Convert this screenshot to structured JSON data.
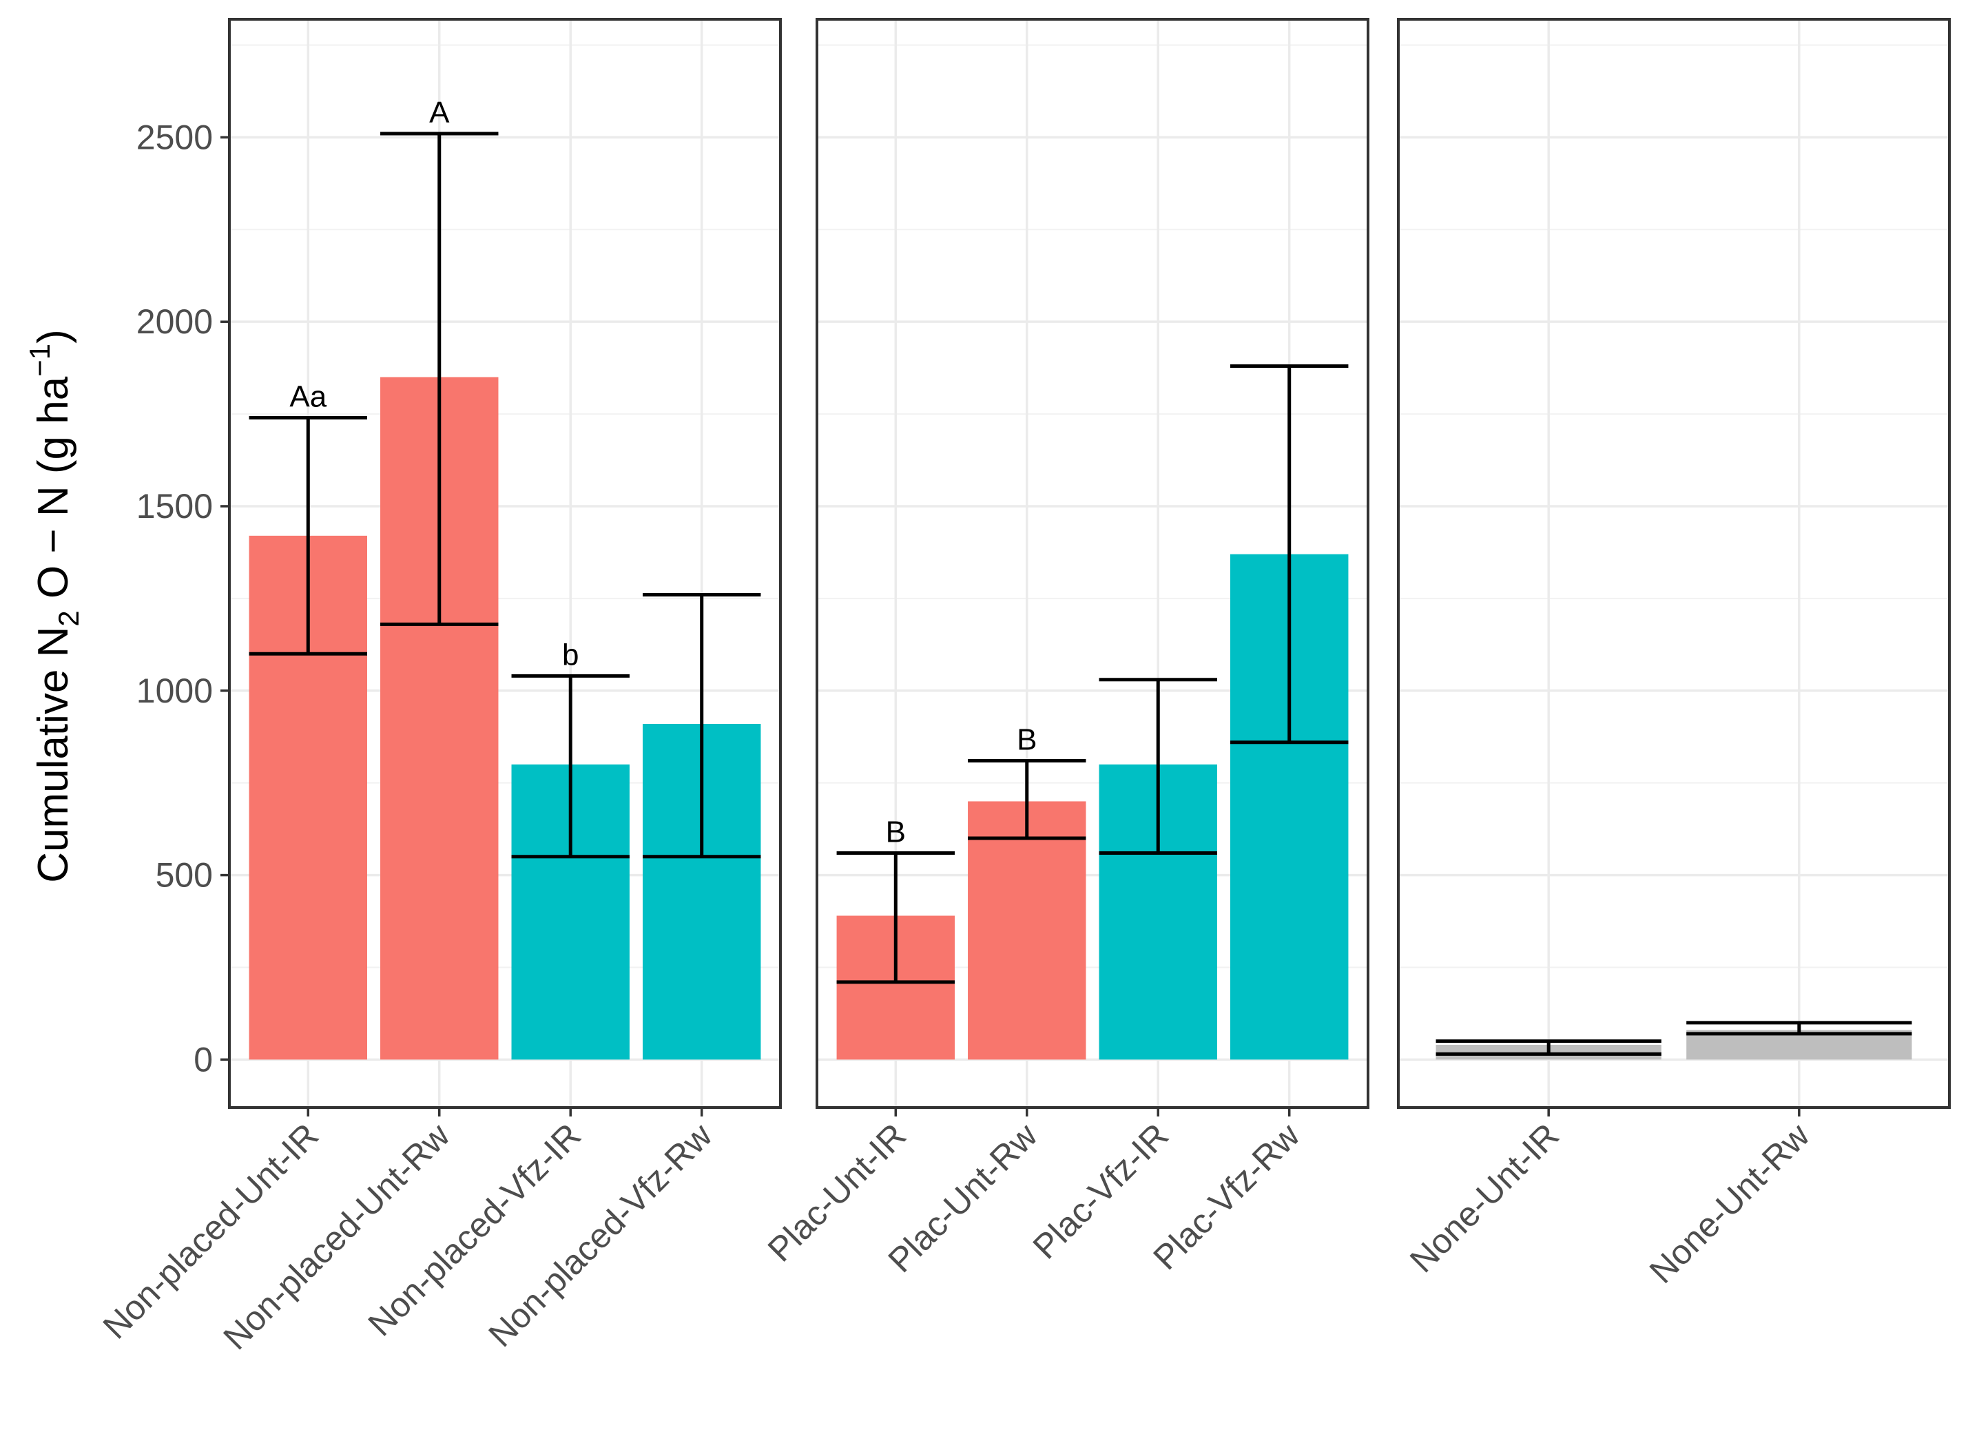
{
  "chart_data": {
    "type": "bar",
    "ylabel": {
      "prefix": "Cumulative N",
      "sub": "2",
      "mid": " O − N (g ha",
      "sup": "−1",
      "suffix": ")"
    },
    "ylim": [
      -130,
      2820
    ],
    "yticks": [
      0,
      500,
      1000,
      1500,
      2000,
      2500
    ],
    "grid": true,
    "legend": "none",
    "colors": {
      "Unt": "#F8766D",
      "Vfz": "#00BFC4",
      "None": "#BEBEBE"
    },
    "panels": [
      {
        "name": "Non-placed",
        "categories": [
          "Non-placed-Unt-IR",
          "Non-placed-Unt-Rw",
          "Non-placed-Vfz-IR",
          "Non-placed-Vfz-Rw"
        ],
        "values": [
          1420,
          1850,
          800,
          910
        ],
        "err_low": [
          1100,
          1180,
          550,
          550
        ],
        "err_high": [
          1740,
          2510,
          1040,
          1260
        ],
        "fill": [
          "Unt",
          "Unt",
          "Vfz",
          "Vfz"
        ],
        "letters": [
          "Aa",
          "A",
          "b",
          ""
        ]
      },
      {
        "name": "Plac",
        "categories": [
          "Plac-Unt-IR",
          "Plac-Unt-Rw",
          "Plac-Vfz-IR",
          "Plac-Vfz-Rw"
        ],
        "values": [
          390,
          700,
          800,
          1370
        ],
        "err_low": [
          210,
          600,
          560,
          860
        ],
        "err_high": [
          560,
          810,
          1030,
          1880
        ],
        "fill": [
          "Unt",
          "Unt",
          "Vfz",
          "Vfz"
        ],
        "letters": [
          "B",
          "B",
          "",
          ""
        ]
      },
      {
        "name": "None",
        "categories": [
          "None-Unt-IR",
          "None-Unt-Rw"
        ],
        "values": [
          40,
          80
        ],
        "err_low": [
          15,
          70
        ],
        "err_high": [
          50,
          100
        ],
        "fill": [
          "None",
          "None"
        ],
        "letters": [
          "",
          ""
        ]
      }
    ]
  }
}
